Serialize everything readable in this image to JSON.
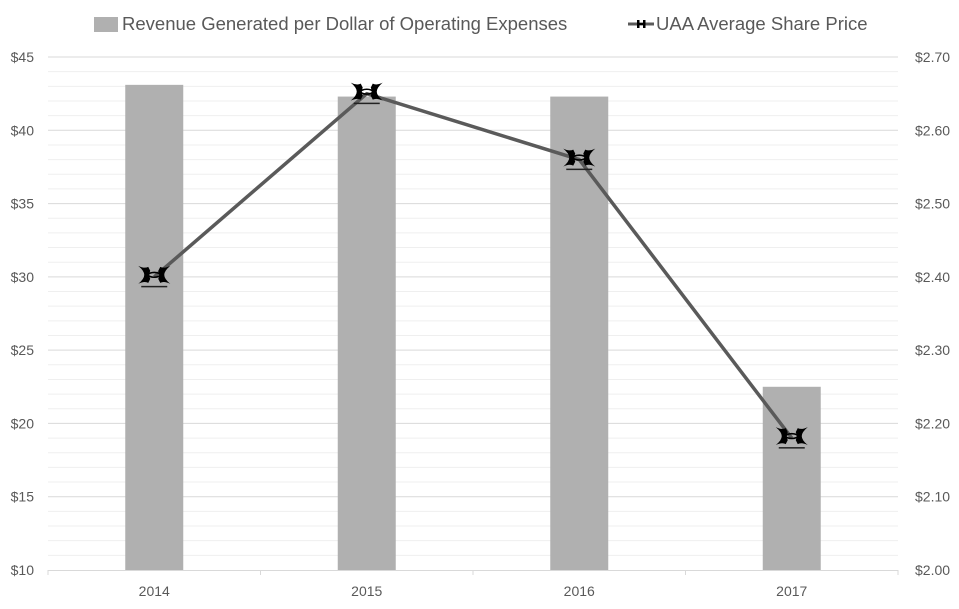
{
  "chart_data": {
    "type": "bar",
    "title": "",
    "categories": [
      "2014",
      "2015",
      "2016",
      "2017"
    ],
    "series": [
      {
        "name": "Revenue Generated per Dollar of Operating Expenses",
        "type": "bar",
        "axis": "left",
        "color": "#b0b0b0",
        "values": [
          43.1,
          42.3,
          42.3,
          22.5
        ]
      },
      {
        "name": "UAA Average Share Price",
        "type": "line",
        "axis": "right",
        "color": "#5a5a5a",
        "marker": "under-armour-logo",
        "values": [
          2.4,
          2.65,
          2.56,
          2.18
        ]
      }
    ],
    "left_axis": {
      "ylim": [
        10,
        45
      ],
      "major_step": 5,
      "minor_step": 1,
      "tick_labels": [
        "$10",
        "$15",
        "$20",
        "$25",
        "$30",
        "$35",
        "$40",
        "$45"
      ]
    },
    "right_axis": {
      "ylim": [
        2.0,
        2.7
      ],
      "major_step": 0.1,
      "tick_labels": [
        "$2.00",
        "$2.10",
        "$2.20",
        "$2.30",
        "$2.40",
        "$2.50",
        "$2.60",
        "$2.70"
      ]
    },
    "xlabel": "",
    "ylabel": "",
    "grid": true,
    "legend_position": "top"
  },
  "legend": {
    "bar_label": "Revenue Generated per Dollar of Operating Expenses",
    "line_label": "UAA Average Share Price"
  }
}
